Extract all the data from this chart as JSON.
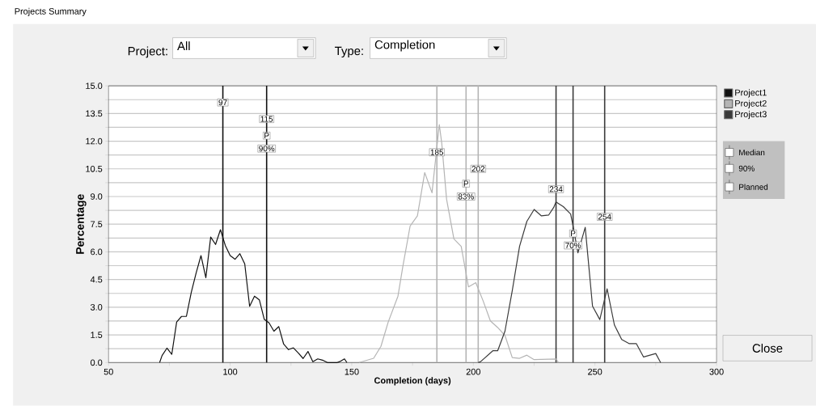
{
  "chart_data": {
    "type": "line",
    "title": "Projects Summary",
    "xlabel": "Completion (days)",
    "ylabel": "Percentage",
    "xlim": [
      50,
      300
    ],
    "ylim": [
      0,
      15
    ],
    "xticks": [
      50,
      {
        "value": 75,
        "label": null
      },
      100,
      {
        "value": 125,
        "label": null
      },
      150,
      {
        "value": 175,
        "label": null
      },
      200,
      {
        "value": 225,
        "label": null
      },
      250,
      {
        "value": 275,
        "label": null
      },
      300
    ],
    "yticks": [
      {
        "value": 0,
        "label": "0.0"
      },
      {
        "value": 0.75,
        "label": null
      },
      {
        "value": 1.5,
        "label": "1.5"
      },
      {
        "value": 2.25,
        "label": null
      },
      {
        "value": 3,
        "label": "3.0"
      },
      {
        "value": 3.75,
        "label": null
      },
      {
        "value": 4.5,
        "label": "4.5"
      },
      {
        "value": 5.25,
        "label": null
      },
      {
        "value": 6,
        "label": "6.0"
      },
      {
        "value": 6.75,
        "label": null
      },
      {
        "value": 7.5,
        "label": "7.5"
      },
      {
        "value": 8.25,
        "label": null
      },
      {
        "value": 9,
        "label": "9.0"
      },
      {
        "value": 9.75,
        "label": null
      },
      {
        "value": 10.5,
        "label": "10.5"
      },
      {
        "value": 11.25,
        "label": null
      },
      {
        "value": 12,
        "label": "12.0"
      },
      {
        "value": 12.75,
        "label": null
      },
      {
        "value": 13.5,
        "label": "13.5"
      },
      {
        "value": 14.25,
        "label": null
      },
      {
        "value": 15,
        "label": "15.0"
      }
    ],
    "grid": "y",
    "legend": "right",
    "marker": "none",
    "line_style": "solid",
    "series": [
      {
        "name": "Project1",
        "color": "#111111",
        "x": [
          71,
          72,
          74,
          76,
          78,
          80,
          82,
          84,
          86,
          88,
          90,
          92,
          94,
          96,
          98,
          100,
          102,
          104,
          106,
          108,
          110,
          112,
          114,
          116,
          118,
          120,
          122,
          124,
          126,
          128,
          130,
          132,
          134,
          136,
          138,
          140,
          144,
          145,
          147,
          148
        ],
        "values": [
          0,
          0.38,
          0.78,
          0.45,
          2.2,
          2.5,
          2.5,
          3.8,
          4.85,
          5.8,
          4.6,
          6.8,
          6.4,
          7.2,
          6.35,
          5.8,
          5.6,
          5.9,
          5.35,
          3.05,
          3.6,
          3.4,
          2.35,
          2.15,
          1.7,
          1.95,
          1.0,
          0.7,
          0.8,
          0.52,
          0.22,
          0.6,
          0.05,
          0.2,
          0.13,
          0,
          0,
          0.05,
          0.2,
          0
        ]
      },
      {
        "name": "Project2",
        "color": "#b4b4b4",
        "x": [
          153,
          159,
          162,
          165,
          169,
          171,
          174,
          177,
          180,
          183,
          186,
          187,
          189,
          192,
          195,
          198,
          201,
          204,
          207,
          210,
          213,
          216,
          219,
          222,
          225,
          234,
          235
        ],
        "values": [
          0,
          0.23,
          0.88,
          2.2,
          3.6,
          5.2,
          7.4,
          7.95,
          10.3,
          9.2,
          12.9,
          11.9,
          8.85,
          6.7,
          6.3,
          4.1,
          4.33,
          3.35,
          2.26,
          1.9,
          1.47,
          0.27,
          0.23,
          0.4,
          0.16,
          0.19,
          0
        ]
      },
      {
        "name": "Project3",
        "color": "#3a3a3a",
        "x": [
          202,
          203,
          208,
          210,
          213,
          216,
          219,
          222,
          225,
          228,
          231,
          233,
          234,
          237,
          240,
          241,
          243,
          246,
          249,
          252,
          255,
          258,
          261,
          264,
          267,
          270,
          275,
          277
        ],
        "values": [
          0,
          0.05,
          0.64,
          0.64,
          1.7,
          3.9,
          6.3,
          7.65,
          8.3,
          7.95,
          8.0,
          8.4,
          8.7,
          8.45,
          8.05,
          7.4,
          5.95,
          7.33,
          3.06,
          2.33,
          4.0,
          2.04,
          1.25,
          1.03,
          1.03,
          0.3,
          0.49,
          0
        ]
      }
    ],
    "ref_lines": [
      {
        "axis": "x",
        "value": 97,
        "color": "#111111"
      },
      {
        "axis": "x",
        "value": 115,
        "color": "#111111"
      },
      {
        "axis": "x",
        "value": 185,
        "color": "#b4b4b4"
      },
      {
        "axis": "x",
        "value": 197,
        "color": "#b4b4b4"
      },
      {
        "axis": "x",
        "value": 202,
        "color": "#b4b4b4"
      },
      {
        "axis": "x",
        "value": 234,
        "color": "#3a3a3a"
      },
      {
        "axis": "x",
        "value": 241,
        "color": "#3a3a3a"
      },
      {
        "axis": "x",
        "value": 254,
        "color": "#3a3a3a"
      }
    ],
    "annotations": [
      "Project:",
      "All",
      "Type:",
      "Completion",
      "Close",
      "Median",
      "90%",
      "Planned",
      {
        "text": "97",
        "x": 97,
        "y": 14.1
      },
      {
        "text": "115",
        "x": 115,
        "y": 13.2
      },
      {
        "text": "P",
        "x": 115,
        "y": 12.3
      },
      {
        "text": "90%",
        "x": 115,
        "y": 11.6
      },
      {
        "text": "185",
        "x": 185,
        "y": 11.4
      },
      {
        "text": "202",
        "x": 202,
        "y": 10.5
      },
      {
        "text": "P",
        "x": 197,
        "y": 9.7
      },
      {
        "text": "83%",
        "x": 197,
        "y": 9.0
      },
      {
        "text": "234",
        "x": 234,
        "y": 9.4
      },
      {
        "text": "P",
        "x": 241,
        "y": 7.0
      },
      {
        "text": "70%",
        "x": 241,
        "y": 6.35
      },
      {
        "text": "254",
        "x": 254,
        "y": 7.9
      }
    ]
  }
}
